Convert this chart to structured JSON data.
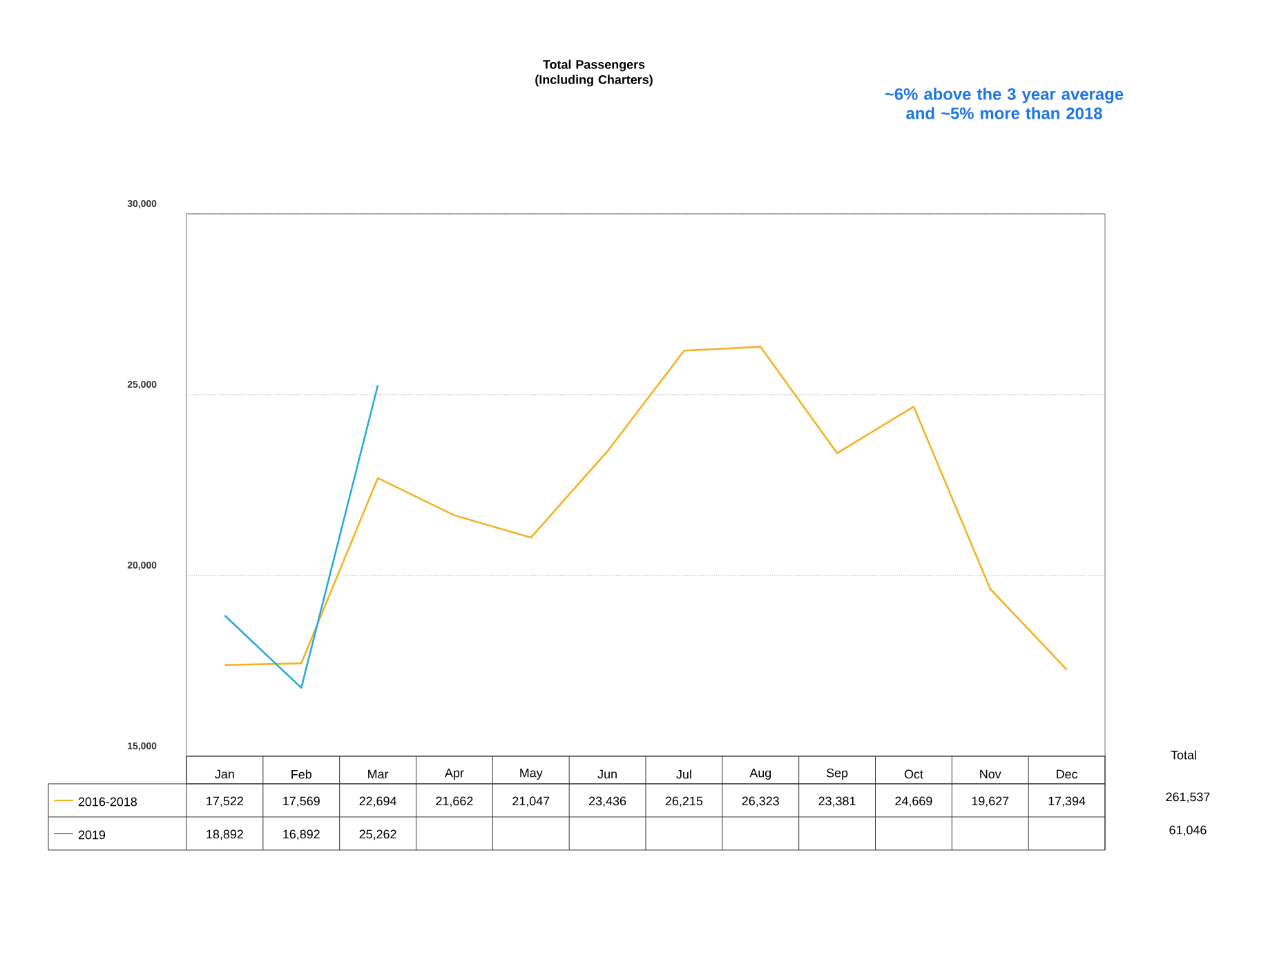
{
  "chart_data": {
    "type": "line",
    "title": "Total Passengers (Including Charters)",
    "categories": [
      "Jan",
      "Feb",
      "Mar",
      "Apr",
      "May",
      "Jun",
      "Jul",
      "Aug",
      "Sep",
      "Oct",
      "Nov",
      "Dec"
    ],
    "series": [
      {
        "name": "2016-2018",
        "color": "#f5b120",
        "values": [
          17522,
          17569,
          22694,
          21662,
          21047,
          23436,
          26215,
          26323,
          23381,
          24669,
          19627,
          17394
        ],
        "value_labels": [
          "17,522",
          "17,569",
          "22,694",
          "21,662",
          "21,047",
          "23,436",
          "26,215",
          "26,323",
          "23,381",
          "24,669",
          "19,627",
          "17,394"
        ]
      },
      {
        "name": "2019",
        "color": "#29a9dc",
        "values": [
          18892,
          16892,
          25262,
          null,
          null,
          null,
          null,
          null,
          null,
          null,
          null,
          null
        ],
        "value_labels": [
          "18,892",
          "16,892",
          "25,262",
          null,
          null,
          null,
          null,
          null,
          null,
          null,
          null,
          null
        ]
      }
    ],
    "ylim": [
      15000,
      30000
    ],
    "yticks": [
      {
        "value": 15000,
        "label": "15,000"
      },
      {
        "value": 20000,
        "label": "20,000"
      },
      {
        "value": 25000,
        "label": "25,000"
      },
      {
        "value": 30000,
        "label": "30,000"
      }
    ],
    "grid": "y",
    "legend": "bottom",
    "marker": "none",
    "line_style": "solid",
    "annotations": [
      "~6% above the 3 year average and ~5% more than 2018",
      "Total",
      "261,537",
      "61,046"
    ]
  }
}
